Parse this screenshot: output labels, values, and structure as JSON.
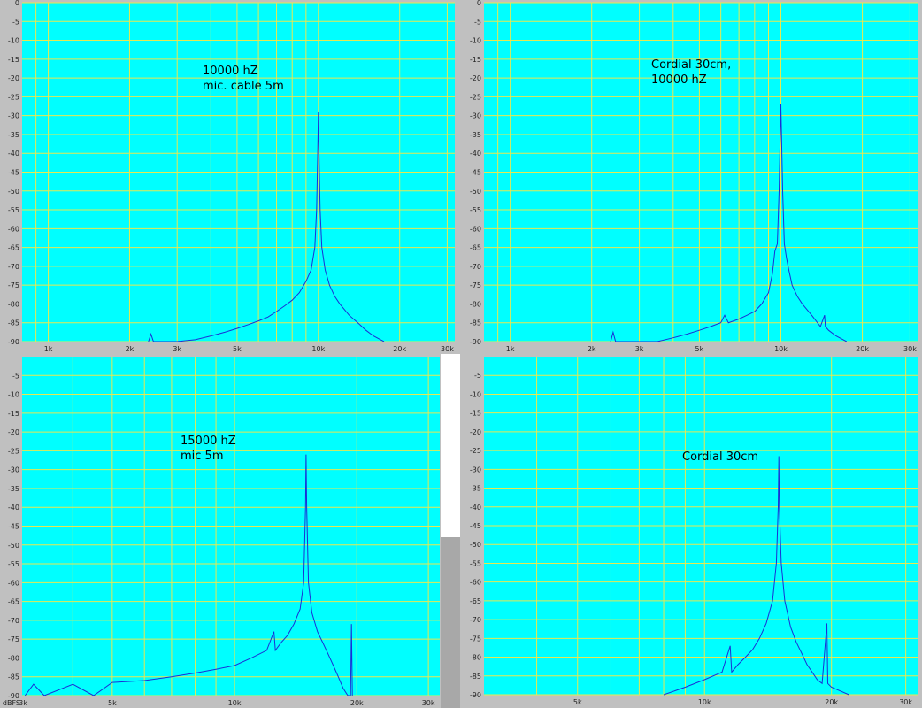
{
  "colors": {
    "plot_bg": "#00ffff",
    "grid": "#e8e850",
    "trace": "#1a2fd6",
    "frame": "#c0c0c0"
  },
  "chart_data": [
    {
      "type": "line",
      "annotation": "10000 hZ\nmic. cable 5m",
      "x_scale": "log",
      "xlim": [
        800,
        32000
      ],
      "ylim": [
        -90,
        0
      ],
      "y_ticks": [
        0,
        -5,
        -10,
        -15,
        -20,
        -25,
        -30,
        -35,
        -40,
        -45,
        -50,
        -55,
        -60,
        -65,
        -70,
        -75,
        -80,
        -85,
        -90
      ],
      "x_ticks": [
        {
          "v": 1000,
          "label": "1k"
        },
        {
          "v": 2000,
          "label": "2k"
        },
        {
          "v": 3000,
          "label": "3k"
        },
        {
          "v": 5000,
          "label": "5k"
        },
        {
          "v": 10000,
          "label": "10k"
        },
        {
          "v": 20000,
          "label": "20k"
        },
        {
          "v": 30000,
          "label": "30k"
        }
      ],
      "unit_label": "",
      "series": [
        {
          "points": [
            [
              2350,
              -90
            ],
            [
              2400,
              -88
            ],
            [
              2450,
              -90
            ],
            [
              3000,
              -90
            ],
            [
              3500,
              -89.5
            ],
            [
              4000,
              -88.5
            ],
            [
              4500,
              -87.5
            ],
            [
              5000,
              -86.5
            ],
            [
              5500,
              -85.5
            ],
            [
              6000,
              -84.5
            ],
            [
              6500,
              -83.5
            ],
            [
              7000,
              -82
            ],
            [
              7500,
              -80.5
            ],
            [
              8000,
              -79
            ],
            [
              8500,
              -77
            ],
            [
              9000,
              -74
            ],
            [
              9400,
              -71
            ],
            [
              9700,
              -65
            ],
            [
              9850,
              -55
            ],
            [
              9950,
              -40
            ],
            [
              10000,
              -29
            ],
            [
              10050,
              -40
            ],
            [
              10150,
              -55
            ],
            [
              10300,
              -65
            ],
            [
              10600,
              -71
            ],
            [
              11000,
              -75
            ],
            [
              11500,
              -78
            ],
            [
              12000,
              -80
            ],
            [
              13000,
              -83
            ],
            [
              14000,
              -85
            ],
            [
              15000,
              -87
            ],
            [
              16000,
              -88.5
            ],
            [
              17000,
              -89.5
            ],
            [
              17500,
              -90
            ]
          ]
        }
      ]
    },
    {
      "type": "line",
      "annotation": "Cordial 30cm,\n10000 hZ",
      "x_scale": "log",
      "xlim": [
        800,
        32000
      ],
      "ylim": [
        -90,
        0
      ],
      "y_ticks": [
        0,
        -5,
        -10,
        -15,
        -20,
        -25,
        -30,
        -35,
        -40,
        -45,
        -50,
        -55,
        -60,
        -65,
        -70,
        -75,
        -80,
        -85,
        -90
      ],
      "x_ticks": [
        {
          "v": 1000,
          "label": "1k"
        },
        {
          "v": 2000,
          "label": "2k"
        },
        {
          "v": 3000,
          "label": "3k"
        },
        {
          "v": 5000,
          "label": "5k"
        },
        {
          "v": 10000,
          "label": "10k"
        },
        {
          "v": 20000,
          "label": "20k"
        },
        {
          "v": 30000,
          "label": "30k"
        }
      ],
      "unit_label": "",
      "series": [
        {
          "points": [
            [
              2350,
              -90
            ],
            [
              2400,
              -87.5
            ],
            [
              2450,
              -90
            ],
            [
              3500,
              -90
            ],
            [
              4000,
              -89
            ],
            [
              4500,
              -88
            ],
            [
              5000,
              -87
            ],
            [
              5500,
              -86
            ],
            [
              6000,
              -85
            ],
            [
              6200,
              -83
            ],
            [
              6400,
              -85
            ],
            [
              7000,
              -84
            ],
            [
              7500,
              -83
            ],
            [
              8000,
              -82
            ],
            [
              8500,
              -80
            ],
            [
              9000,
              -77
            ],
            [
              9300,
              -72
            ],
            [
              9500,
              -66
            ],
            [
              9700,
              -64
            ],
            [
              9850,
              -50
            ],
            [
              9950,
              -35
            ],
            [
              10000,
              -27
            ],
            [
              10050,
              -35
            ],
            [
              10150,
              -50
            ],
            [
              10300,
              -64
            ],
            [
              10500,
              -68
            ],
            [
              10700,
              -71
            ],
            [
              11000,
              -75
            ],
            [
              11500,
              -78
            ],
            [
              12000,
              -80
            ],
            [
              13000,
              -83
            ],
            [
              14000,
              -86
            ],
            [
              14500,
              -83
            ],
            [
              14600,
              -86
            ],
            [
              15000,
              -87
            ],
            [
              16000,
              -88.5
            ],
            [
              17000,
              -89.5
            ],
            [
              17500,
              -90
            ]
          ]
        }
      ]
    },
    {
      "type": "line",
      "annotation": "15000 hZ\nmic 5m",
      "x_scale": "log",
      "xlim": [
        3000,
        32000
      ],
      "ylim": [
        -90,
        0
      ],
      "y_ticks": [
        -5,
        -10,
        -15,
        -20,
        -25,
        -30,
        -35,
        -40,
        -45,
        -50,
        -55,
        -60,
        -65,
        -70,
        -75,
        -80,
        -85,
        -90
      ],
      "x_ticks": [
        {
          "v": 5000,
          "label": "5k"
        },
        {
          "v": 10000,
          "label": "10k"
        },
        {
          "v": 20000,
          "label": "20k"
        },
        {
          "v": 30000,
          "label": "30k"
        }
      ],
      "unit_label": "dBFS",
      "x_start_label": "3k",
      "series": [
        {
          "points": [
            [
              3050,
              -90
            ],
            [
              3200,
              -87
            ],
            [
              3400,
              -90
            ],
            [
              4000,
              -87
            ],
            [
              4500,
              -90
            ],
            [
              5000,
              -86.5
            ],
            [
              6000,
              -86
            ],
            [
              7000,
              -85
            ],
            [
              8000,
              -84
            ],
            [
              9000,
              -83
            ],
            [
              10000,
              -82
            ],
            [
              11000,
              -80
            ],
            [
              12000,
              -78
            ],
            [
              12500,
              -73
            ],
            [
              12600,
              -78
            ],
            [
              13000,
              -76
            ],
            [
              13500,
              -74
            ],
            [
              14000,
              -71
            ],
            [
              14500,
              -67
            ],
            [
              14800,
              -60
            ],
            [
              14950,
              -40
            ],
            [
              15000,
              -26
            ],
            [
              15050,
              -40
            ],
            [
              15200,
              -60
            ],
            [
              15500,
              -68
            ],
            [
              16000,
              -73
            ],
            [
              16500,
              -76
            ],
            [
              17000,
              -79
            ],
            [
              17500,
              -82
            ],
            [
              18000,
              -85
            ],
            [
              18500,
              -88
            ],
            [
              19000,
              -90
            ],
            [
              19300,
              -90
            ],
            [
              19400,
              -71
            ],
            [
              19500,
              -90
            ]
          ]
        }
      ]
    },
    {
      "type": "line",
      "annotation": "Cordial 30cm",
      "x_scale": "log",
      "xlim": [
        3000,
        32000
      ],
      "ylim": [
        -90,
        0
      ],
      "y_ticks": [
        -5,
        -10,
        -15,
        -20,
        -25,
        -30,
        -35,
        -40,
        -45,
        -50,
        -55,
        -60,
        -65,
        -70,
        -75,
        -80,
        -85,
        -90
      ],
      "x_ticks": [
        {
          "v": 5000,
          "label": "5k"
        },
        {
          "v": 10000,
          "label": "10k"
        },
        {
          "v": 20000,
          "label": "20k"
        },
        {
          "v": 30000,
          "label": "30k"
        }
      ],
      "unit_label": "",
      "series": [
        {
          "points": [
            [
              8000,
              -90
            ],
            [
              9000,
              -88
            ],
            [
              10000,
              -86
            ],
            [
              11000,
              -84
            ],
            [
              11500,
              -77
            ],
            [
              11600,
              -84
            ],
            [
              12000,
              -82
            ],
            [
              12500,
              -80
            ],
            [
              13000,
              -78
            ],
            [
              13500,
              -75
            ],
            [
              14000,
              -71
            ],
            [
              14500,
              -65
            ],
            [
              14800,
              -55
            ],
            [
              14950,
              -40
            ],
            [
              15000,
              -26.5
            ],
            [
              15050,
              -40
            ],
            [
              15200,
              -55
            ],
            [
              15500,
              -65
            ],
            [
              16000,
              -72
            ],
            [
              16500,
              -76
            ],
            [
              17000,
              -79
            ],
            [
              17500,
              -82
            ],
            [
              18000,
              -84
            ],
            [
              18500,
              -86
            ],
            [
              19000,
              -87
            ],
            [
              19500,
              -71
            ],
            [
              19600,
              -87
            ],
            [
              20000,
              -88
            ],
            [
              21000,
              -89
            ],
            [
              22000,
              -90
            ]
          ]
        }
      ]
    }
  ]
}
